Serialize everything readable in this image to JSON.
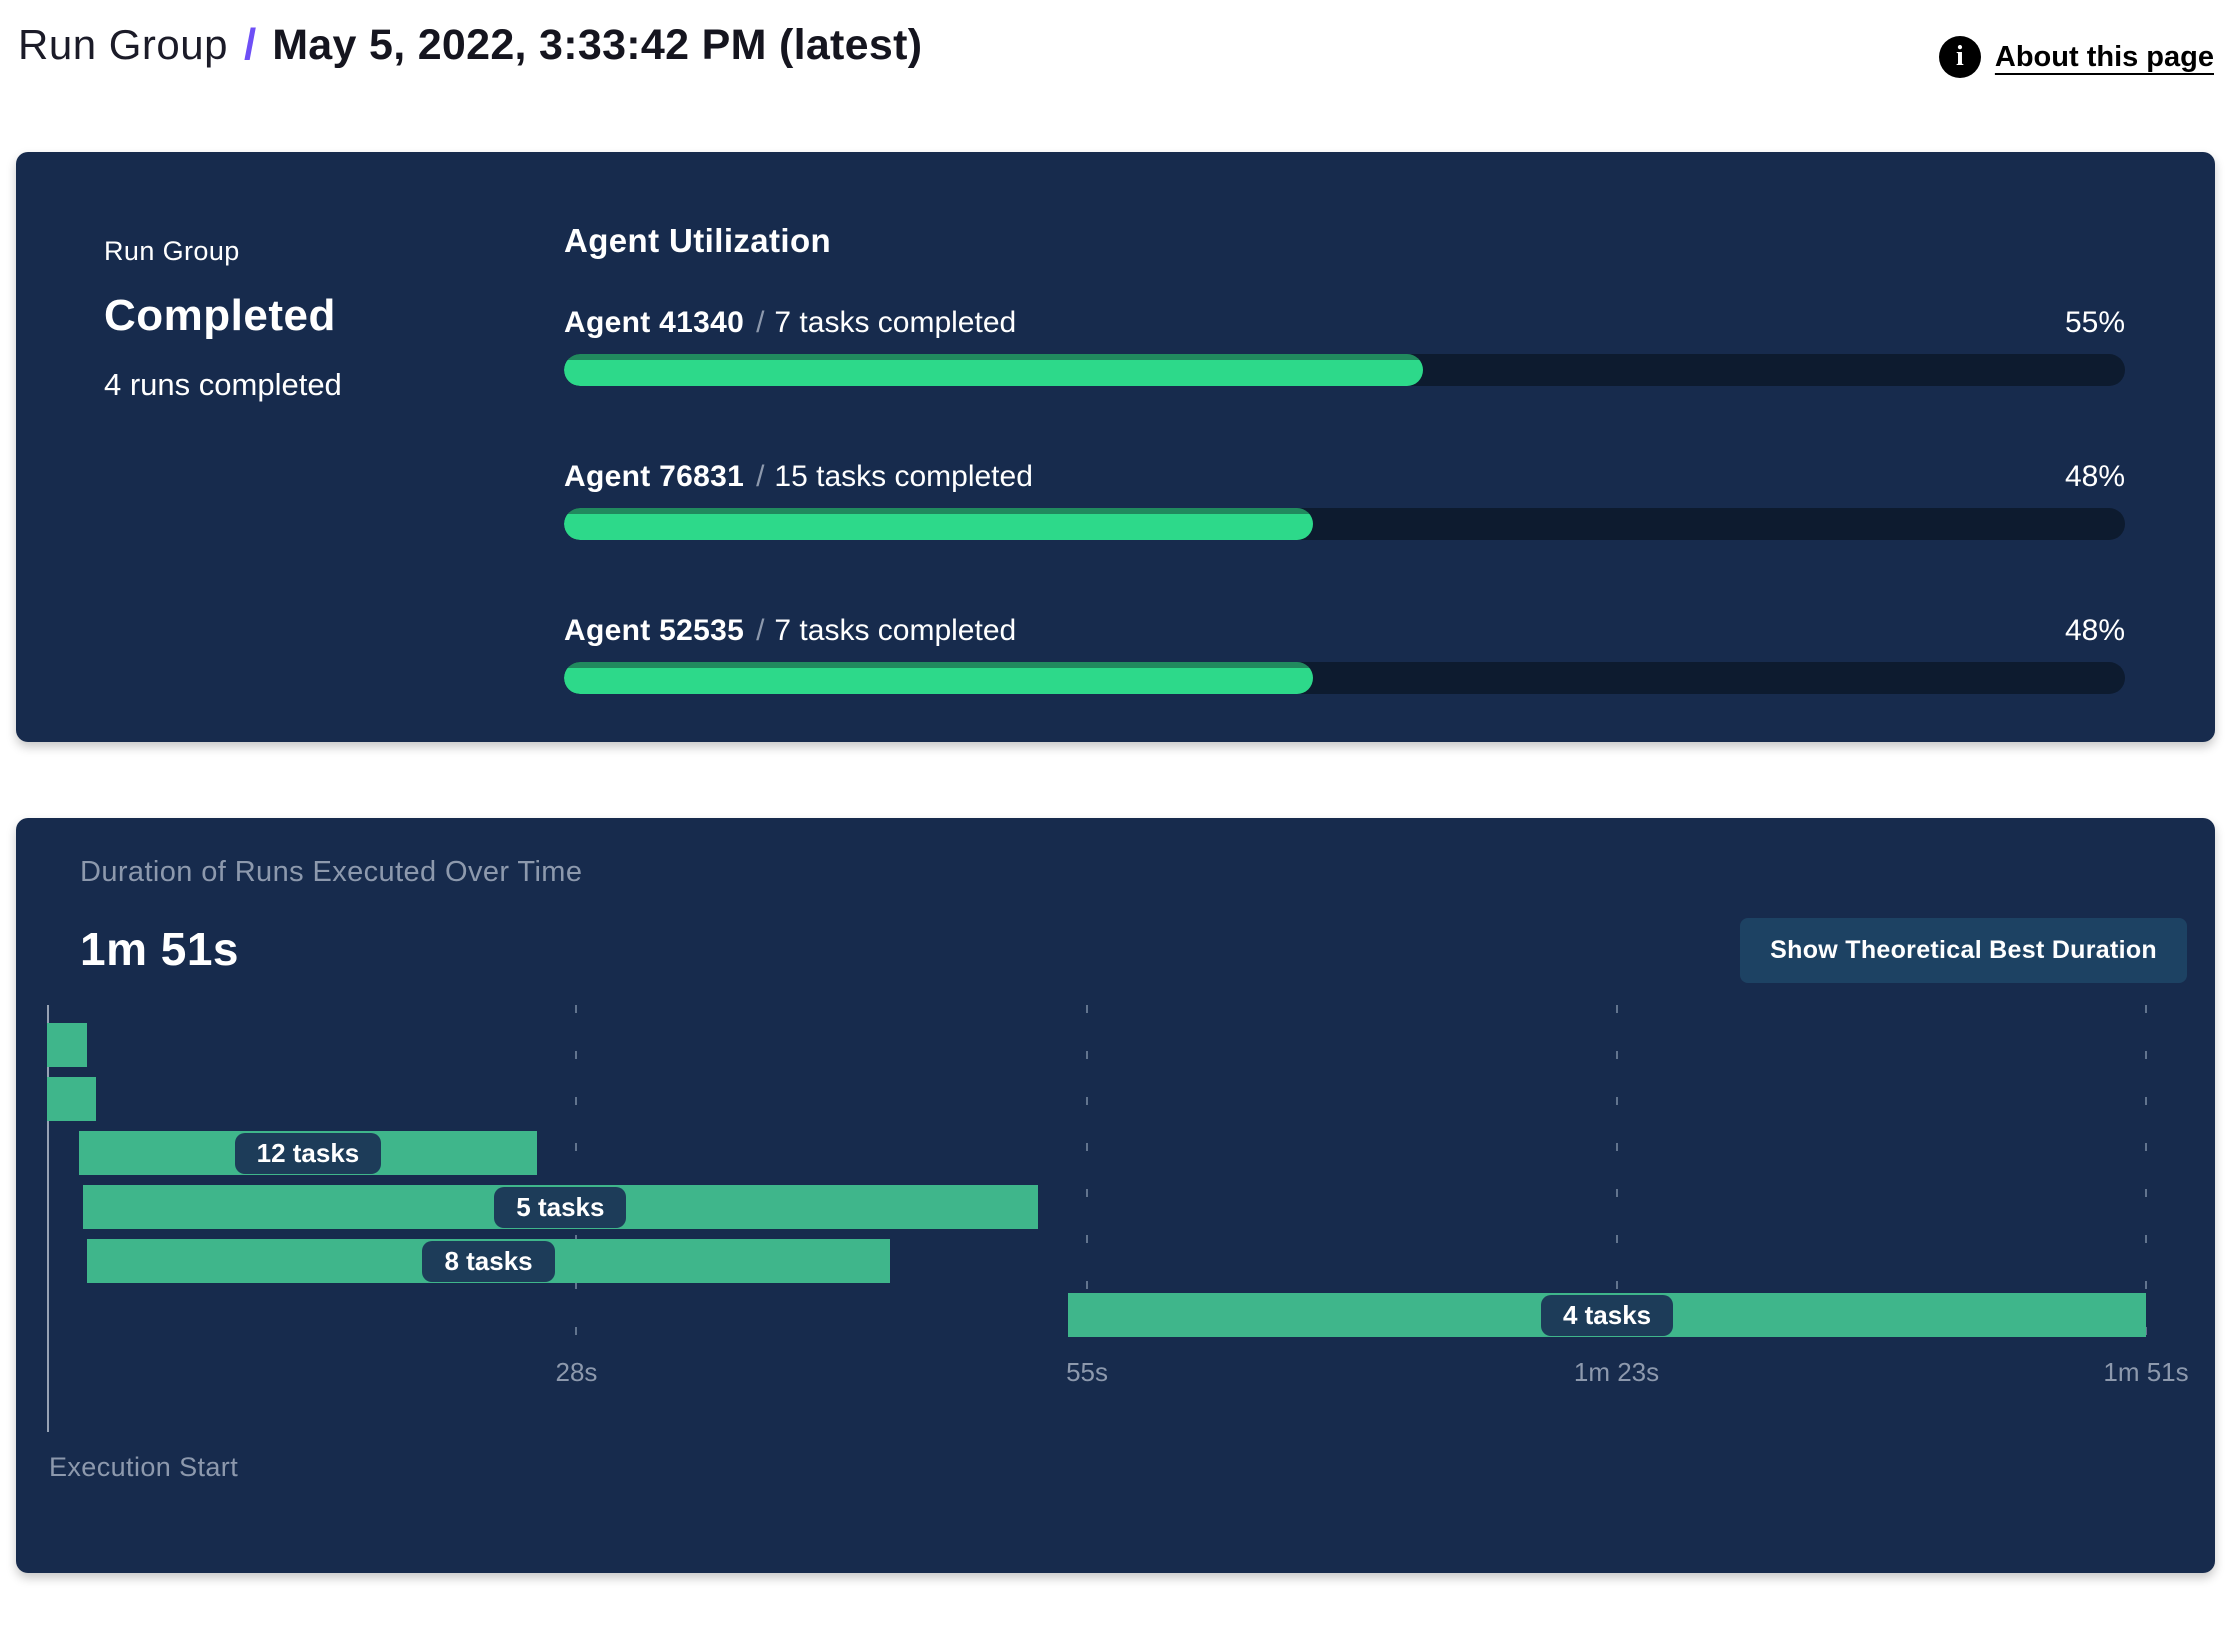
{
  "header": {
    "breadcrumb_root": "Run Group",
    "separator": "/",
    "title": "May 5, 2022, 3:33:42 PM (latest)",
    "info_icon_glyph": "i",
    "about_link": "About this page"
  },
  "summary": {
    "panel_label": "Run Group",
    "status": "Completed",
    "runs_completed": "4 runs completed"
  },
  "agent_utilization": {
    "heading": "Agent Utilization",
    "rows": [
      {
        "agent": "Agent 41340",
        "slash": "/",
        "tasks": "7 tasks completed",
        "percent_label": "55%",
        "percent": 55
      },
      {
        "agent": "Agent 76831",
        "slash": "/",
        "tasks": "15 tasks completed",
        "percent_label": "48%",
        "percent": 48
      },
      {
        "agent": "Agent 52535",
        "slash": "/",
        "tasks": "7 tasks completed",
        "percent_label": "48%",
        "percent": 48
      }
    ]
  },
  "duration_panel": {
    "title": "Duration of Runs Executed Over Time",
    "total_duration": "1m 51s",
    "button_label": "Show Theoretical Best Duration",
    "execution_start_label": "Execution Start"
  },
  "chart_data": {
    "type": "gantt",
    "title": "Duration of Runs Executed Over Time",
    "total_duration_label": "1m 51s",
    "xlim_seconds": [
      0,
      111
    ],
    "x_ticks": [
      "28s",
      "55s",
      "1m 23s",
      "1m 51s"
    ],
    "x_tick_seconds": [
      28,
      55,
      83,
      111
    ],
    "grid": "dashed-vertical",
    "runs": [
      {
        "label": "",
        "start_s": 0,
        "end_s": 2.1
      },
      {
        "label": "",
        "start_s": 0,
        "end_s": 2.6
      },
      {
        "label": "12 tasks",
        "start_s": 1.7,
        "end_s": 25.9
      },
      {
        "label": "5 tasks",
        "start_s": 1.9,
        "end_s": 52.4
      },
      {
        "label": "8 tasks",
        "start_s": 2.1,
        "end_s": 44.6
      },
      {
        "label": "4 tasks",
        "start_s": 54.0,
        "end_s": 111.0
      }
    ]
  },
  "colors": {
    "panel_navy": "#172b4d",
    "progress_green": "#2dd98a",
    "progress_green_shade": "#218a5e",
    "progress_track": "#0d1b2f",
    "gantt_green": "#3fb68b",
    "pill_navy": "#1d3c59",
    "button_blue": "#1d4263",
    "breadcrumb_purple": "#6e4ff6",
    "muted_gray": "#8d99ad"
  }
}
